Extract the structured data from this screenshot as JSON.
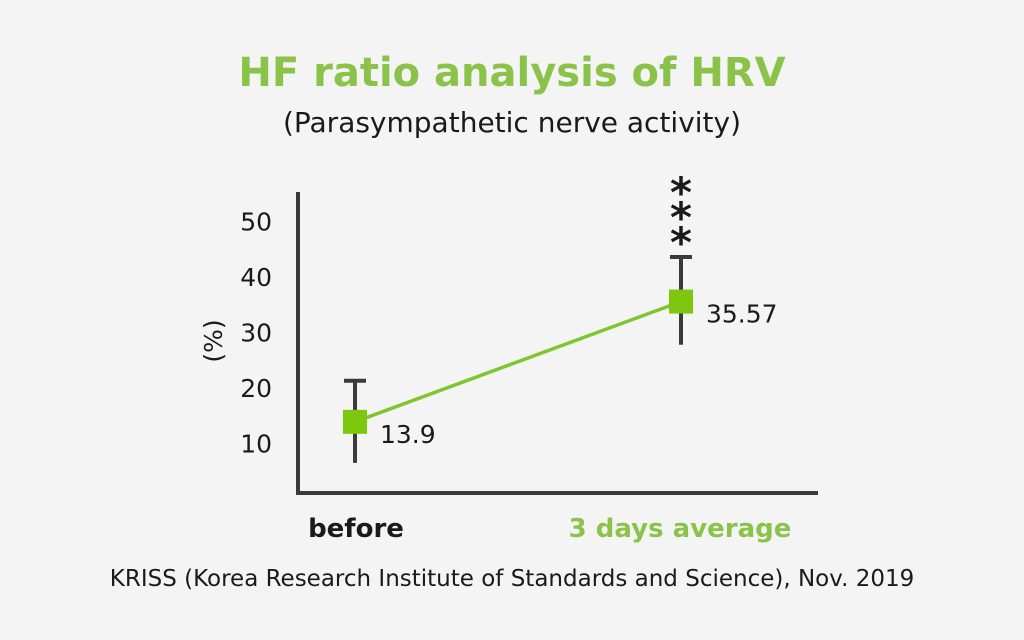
{
  "colors": {
    "accent": "#8bc34a",
    "line": "#7dc62d",
    "marker": "#7dc70e",
    "axis": "#3a3a3a",
    "text": "#1a1a1a"
  },
  "header": {
    "title": "HF ratio analysis of HRV",
    "subtitle": "(Parasympathetic nerve activity)"
  },
  "footer": {
    "source": "KRISS (Korea Research Institute of Standards and Science), Nov. 2019"
  },
  "chart_data": {
    "type": "line",
    "title": "HF ratio analysis of HRV",
    "subtitle": "(Parasympathetic nerve activity)",
    "ylabel": "(%)",
    "xlabel": "",
    "ylim": [
      0,
      55
    ],
    "yticks": [
      10,
      20,
      30,
      40,
      50
    ],
    "categories": [
      "before",
      "3 days average"
    ],
    "category_colors": [
      "#1a1a1a",
      "#8bc34a"
    ],
    "values": [
      13.9,
      35.57
    ],
    "value_labels": [
      "13.9",
      "35.57"
    ],
    "error_bars": [
      {
        "low": 6.5,
        "high": 21.3
      },
      {
        "low": 27.8,
        "high": 43.6
      }
    ],
    "significance": [
      "",
      "***"
    ],
    "grid": false,
    "legend": false
  }
}
